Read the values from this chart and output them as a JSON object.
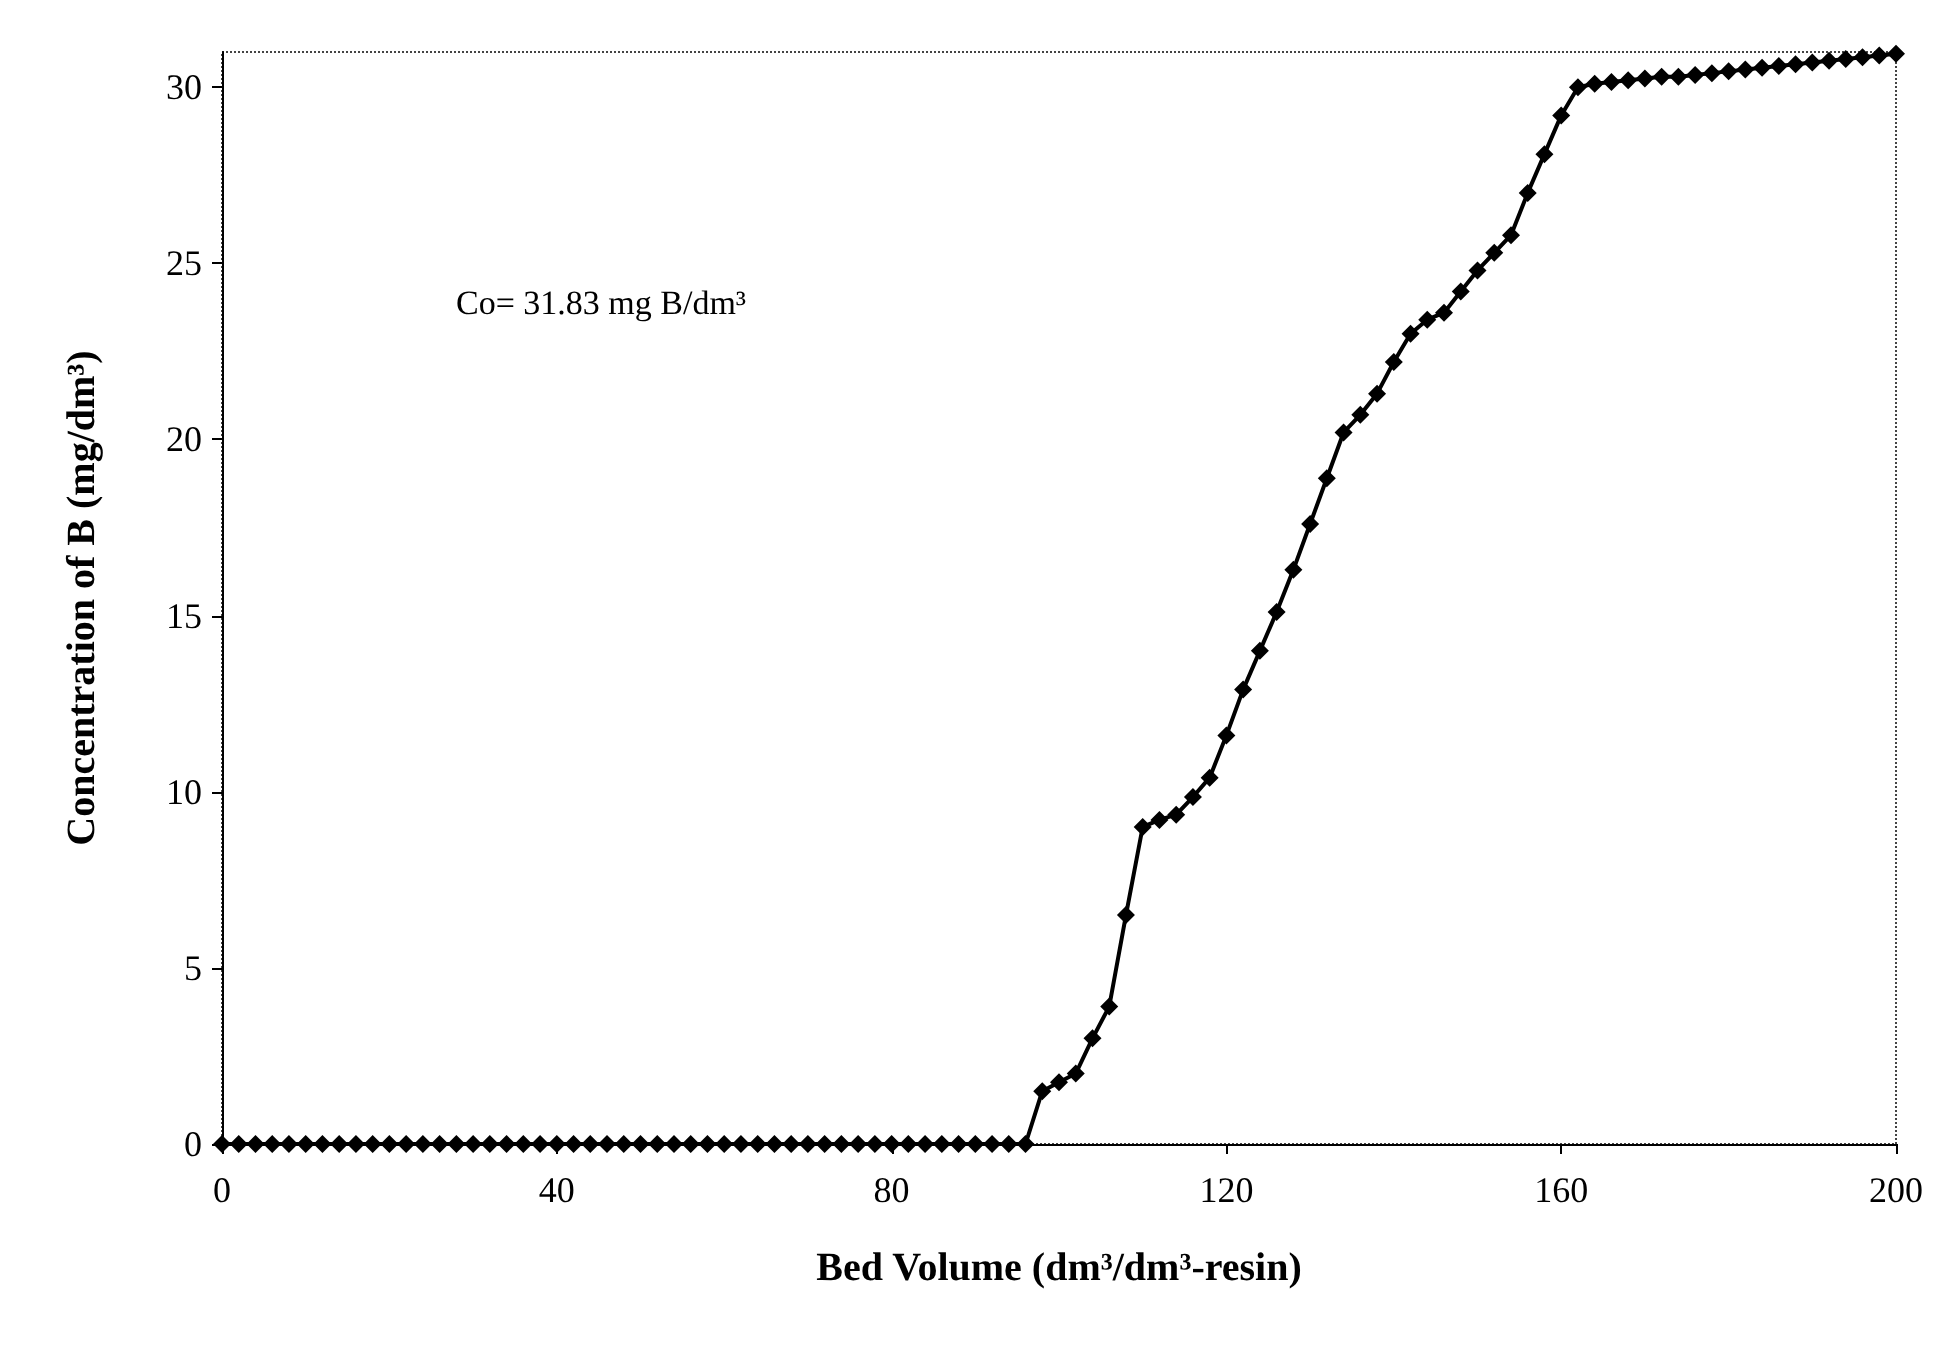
{
  "chart_data": {
    "type": "line",
    "xlabel": "Bed Volume (dm³/dm³-resin)",
    "ylabel": "Concentration of B (mg/dm³)",
    "annotations": [
      "Co= 31.83 mg B/dm³"
    ],
    "x": [
      0,
      2,
      4,
      6,
      8,
      10,
      12,
      14,
      16,
      18,
      20,
      22,
      24,
      26,
      28,
      30,
      32,
      34,
      36,
      38,
      40,
      42,
      44,
      46,
      48,
      50,
      52,
      54,
      56,
      58,
      60,
      62,
      64,
      66,
      68,
      70,
      72,
      74,
      76,
      78,
      80,
      82,
      84,
      86,
      88,
      90,
      92,
      94,
      96,
      98,
      100,
      102,
      104,
      106,
      108,
      110,
      112,
      114,
      116,
      118,
      120,
      122,
      124,
      126,
      128,
      130,
      132,
      134,
      136,
      138,
      140,
      142,
      144,
      146,
      148,
      150,
      152,
      154,
      156,
      158,
      160,
      162,
      164,
      166,
      168,
      170,
      172,
      174,
      176,
      178,
      180,
      182,
      184,
      186,
      188,
      190,
      192,
      194,
      196,
      198,
      200
    ],
    "series": [
      {
        "color": "#000000",
        "values": [
          0,
          0,
          0,
          0,
          0,
          0,
          0,
          0,
          0,
          0,
          0,
          0,
          0,
          0,
          0,
          0,
          0,
          0,
          0,
          0,
          0,
          0,
          0,
          0,
          0,
          0,
          0,
          0,
          0,
          0,
          0,
          0,
          0,
          0,
          0,
          0,
          0,
          0,
          0,
          0,
          0,
          0,
          0,
          0,
          0,
          0,
          0,
          0,
          0,
          1.5,
          1.75,
          2.0,
          3.0,
          3.9,
          6.5,
          9.0,
          9.2,
          9.35,
          9.85,
          10.4,
          11.6,
          12.9,
          14.0,
          15.1,
          16.3,
          17.6,
          18.9,
          20.2,
          20.7,
          21.3,
          22.2,
          23.0,
          23.4,
          23.6,
          24.2,
          24.8,
          25.3,
          25.8,
          27.0,
          28.1,
          29.2,
          30.0,
          30.1,
          30.15,
          30.2,
          30.25,
          30.3,
          30.3,
          30.35,
          30.4,
          30.45,
          30.5,
          30.55,
          30.6,
          30.65,
          30.7,
          30.75,
          30.8,
          30.85,
          30.9,
          30.95
        ]
      }
    ],
    "xlim": [
      0,
      200
    ],
    "xticks": [
      0,
      40,
      80,
      120,
      160,
      200
    ],
    "ylim": [
      0,
      31
    ],
    "yticks": [
      0,
      5,
      10,
      15,
      20,
      25,
      30
    ],
    "grid": false,
    "marker": "diamond",
    "line_style": "solid"
  }
}
